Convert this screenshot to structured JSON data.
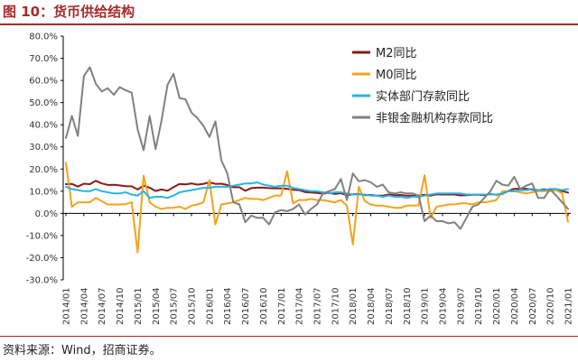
{
  "figure": {
    "title": "图 10：货币供给结构",
    "source": "资料来源：Wind，招商证券。"
  },
  "chart_data": {
    "type": "line",
    "title": "",
    "xlabel": "",
    "ylabel": "",
    "ylim": [
      -30,
      80
    ],
    "y_ticks": [
      "80.0%",
      "70.0%",
      "60.0%",
      "50.0%",
      "40.0%",
      "30.0%",
      "20.0%",
      "10.0%",
      "0.0%",
      "-10.0%",
      "-20.0%",
      "-30.0%"
    ],
    "y_tick_values": [
      80,
      70,
      60,
      50,
      40,
      30,
      20,
      10,
      0,
      -10,
      -20,
      -30
    ],
    "x_tick_labels": [
      "2014/01",
      "2014/04",
      "2014/07",
      "2014/10",
      "2015/01",
      "2015/04",
      "2015/07",
      "2015/10",
      "2016/01",
      "2016/04",
      "2016/07",
      "2016/10",
      "2017/01",
      "2017/04",
      "2017/07",
      "2017/10",
      "2018/01",
      "2018/04",
      "2018/07",
      "2018/10",
      "2019/01",
      "2019/04",
      "2019/07",
      "2019/10",
      "2020/01",
      "2020/04",
      "2020/07",
      "2020/10",
      "2021/01"
    ],
    "x_tick_index": [
      0,
      3,
      6,
      9,
      12,
      15,
      18,
      21,
      24,
      27,
      30,
      33,
      36,
      39,
      42,
      45,
      48,
      51,
      54,
      57,
      60,
      63,
      66,
      69,
      72,
      75,
      78,
      81,
      84
    ],
    "grid": false,
    "legend_position": "top-right",
    "series": [
      {
        "name": "M2同比",
        "color": "#8b1a1a",
        "values": [
          13.2,
          13.3,
          12.1,
          13.4,
          13.2,
          14.7,
          13.5,
          12.8,
          12.9,
          12.6,
          12.3,
          12.2,
          10.8,
          12.5,
          11.6,
          10.1,
          10.8,
          10.2,
          11.8,
          13.3,
          13.1,
          13.5,
          13.0,
          13.3,
          14.0,
          13.3,
          13.4,
          12.8,
          11.8,
          11.8,
          10.2,
          11.4,
          11.6,
          11.6,
          11.4,
          11.3,
          11.3,
          11.1,
          10.6,
          10.5,
          9.6,
          9.4,
          9.2,
          8.9,
          9.2,
          8.8,
          9.1,
          8.2,
          8.6,
          8.8,
          8.2,
          8.3,
          8.0,
          8.0,
          8.5,
          8.2,
          8.3,
          8.0,
          8.0,
          8.1,
          8.4,
          8.0,
          8.6,
          8.5,
          8.5,
          8.5,
          8.1,
          8.2,
          8.4,
          8.4,
          8.2,
          8.7,
          8.4,
          8.8,
          10.1,
          11.1,
          11.1,
          11.1,
          10.7,
          10.4,
          10.9,
          10.5,
          10.7,
          10.1,
          9.4
        ]
      },
      {
        "name": "M0同比",
        "color": "#f5a21b",
        "values": [
          22.8,
          3.0,
          5.0,
          5.0,
          5.0,
          7.0,
          5.5,
          4.0,
          4.0,
          4.0,
          4.2,
          5.0,
          -17.6,
          17.0,
          5.0,
          3.0,
          2.0,
          2.5,
          2.5,
          3.0,
          2.0,
          3.5,
          4.0,
          4.9,
          15.0,
          -5.0,
          4.0,
          4.5,
          5.0,
          6.0,
          7.0,
          6.5,
          6.5,
          6.0,
          7.0,
          8.0,
          8.1,
          19.0,
          4.5,
          6.0,
          6.0,
          6.5,
          6.0,
          6.0,
          5.5,
          5.0,
          6.0,
          3.5,
          -14.0,
          12.0,
          5.5,
          4.0,
          3.5,
          3.5,
          3.0,
          2.5,
          2.5,
          3.5,
          3.5,
          3.6,
          17.2,
          -2.0,
          3.0,
          3.5,
          4.0,
          4.0,
          4.5,
          4.5,
          4.0,
          5.0,
          5.0,
          5.4,
          6.0,
          10.0,
          10.0,
          10.0,
          9.5,
          9.0,
          9.5,
          10.0,
          10.0,
          10.0,
          10.5,
          9.0,
          -3.9
        ]
      },
      {
        "name": "实体部门存款同比",
        "color": "#25b4e6",
        "values": [
          12.0,
          11.0,
          10.5,
          10.0,
          10.0,
          11.0,
          10.0,
          9.5,
          9.0,
          9.0,
          9.5,
          8.5,
          8.0,
          10.0,
          7.0,
          7.5,
          7.5,
          7.0,
          8.0,
          9.5,
          10.0,
          10.5,
          11.0,
          11.5,
          11.5,
          12.0,
          12.0,
          12.0,
          12.5,
          13.0,
          13.5,
          13.5,
          14.0,
          13.0,
          12.5,
          12.0,
          12.5,
          12.5,
          11.5,
          11.0,
          10.5,
          10.0,
          10.0,
          9.5,
          9.0,
          9.5,
          9.5,
          9.0,
          8.5,
          8.5,
          8.5,
          8.0,
          8.0,
          7.5,
          8.0,
          7.5,
          7.5,
          7.0,
          7.5,
          7.5,
          8.0,
          8.5,
          9.0,
          9.0,
          9.0,
          9.0,
          9.0,
          8.5,
          8.5,
          8.5,
          8.5,
          8.5,
          8.5,
          9.0,
          10.0,
          10.0,
          10.5,
          10.5,
          11.0,
          10.5,
          10.5,
          11.0,
          11.0,
          10.5,
          11.0
        ]
      },
      {
        "name": "非银金融机构存款同比",
        "color": "#808080",
        "values": [
          34.0,
          44.0,
          35.0,
          62.0,
          66.0,
          58.5,
          55.0,
          56.5,
          53.5,
          57.0,
          55.5,
          54.5,
          38.0,
          28.5,
          44.0,
          29.0,
          42.0,
          58.0,
          63.0,
          52.0,
          51.5,
          45.5,
          43.0,
          39.5,
          34.5,
          41.5,
          24.0,
          18.0,
          5.0,
          4.0,
          -4.0,
          -1.0,
          -2.0,
          -2.0,
          -5.0,
          0.5,
          1.5,
          1.0,
          2.0,
          4.0,
          -0.5,
          2.0,
          4.0,
          9.0,
          10.0,
          11.0,
          15.5,
          6.0,
          18.0,
          14.5,
          15.0,
          14.0,
          12.0,
          13.0,
          9.5,
          9.0,
          9.5,
          9.0,
          9.0,
          8.0,
          -3.5,
          -1.0,
          -3.5,
          -3.5,
          -4.5,
          -4.0,
          -7.0,
          -2.0,
          3.0,
          4.0,
          7.0,
          10.0,
          14.7,
          13.0,
          12.5,
          16.5,
          11.0,
          12.5,
          13.5,
          7.0,
          7.0,
          11.0,
          8.0,
          5.0,
          2.0
        ]
      }
    ]
  }
}
